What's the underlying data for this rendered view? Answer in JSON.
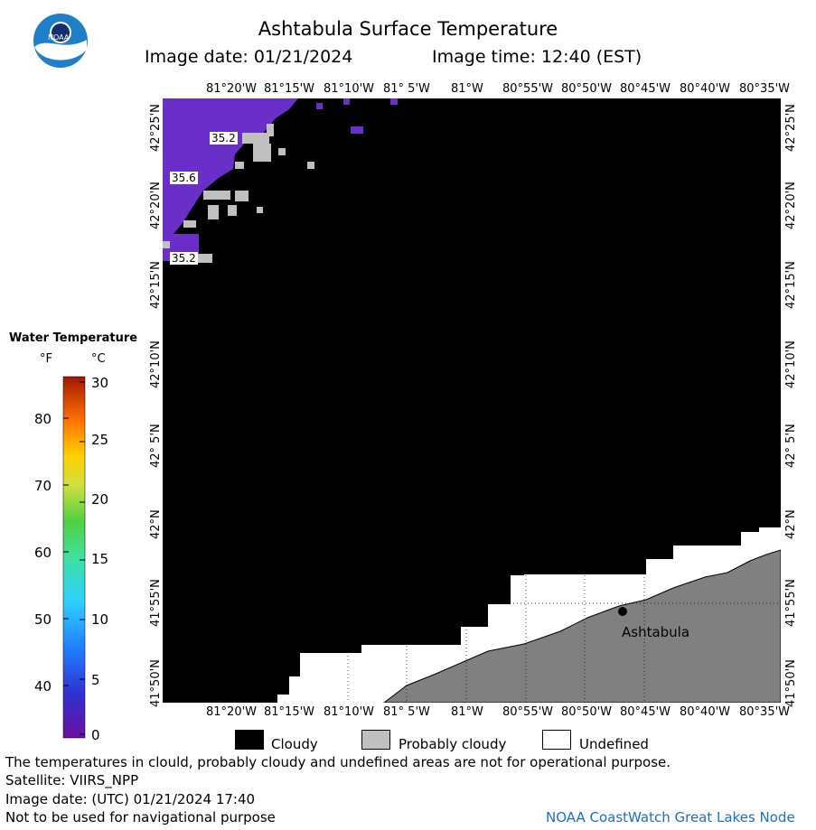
{
  "header": {
    "title": "Ashtabula Surface Temperature",
    "image_date_label": "Image date: 01/21/2024",
    "image_time_label": "Image time: 12:40 (EST)"
  },
  "logo": {
    "text": "NOAA",
    "color": "#1f7fc8"
  },
  "map": {
    "lon_labels": [
      "81°20'W",
      "81°15'W",
      "81°10'W",
      "81° 5'W",
      "81°W",
      "80°55'W",
      "80°50'W",
      "80°45'W",
      "80°40'W",
      "80°35'W"
    ],
    "lat_labels": [
      "42°25'N",
      "42°20'N",
      "42°15'N",
      "42°10'N",
      "42° 5'N",
      "42°N",
      "41°55'N",
      "41°50'N"
    ],
    "temp_labels": [
      "35.2",
      "35.6",
      "35.2"
    ],
    "city": "Ashtabula",
    "colors": {
      "cloudy": "#000000",
      "probably_cloudy": "#c0c0c0",
      "undefined": "#ffffff",
      "land": "#808080",
      "water": "#6a2fc8"
    }
  },
  "colorbar": {
    "title": "Water Temperature",
    "f_header": "°F",
    "c_header": "°C",
    "f_ticks": [
      "80",
      "70",
      "60",
      "50",
      "40"
    ],
    "c_ticks": [
      "30",
      "25",
      "20",
      "15",
      "10",
      "5",
      "0"
    ]
  },
  "legend": {
    "cloudy": "Cloudy",
    "probably_cloudy": "Probably cloudy",
    "undefined": "Undefined"
  },
  "footer": {
    "disclaimer": "The temperatures in clould, probably cloudy and undefined areas are not for operational purpose.",
    "satellite": "Satellite: VIIRS_NPP",
    "utc_date": "Image date: (UTC) 01/21/2024  17:40",
    "nav_warning": "Not to be used for navigational purpose",
    "credit": "NOAA CoastWatch Great Lakes Node"
  }
}
